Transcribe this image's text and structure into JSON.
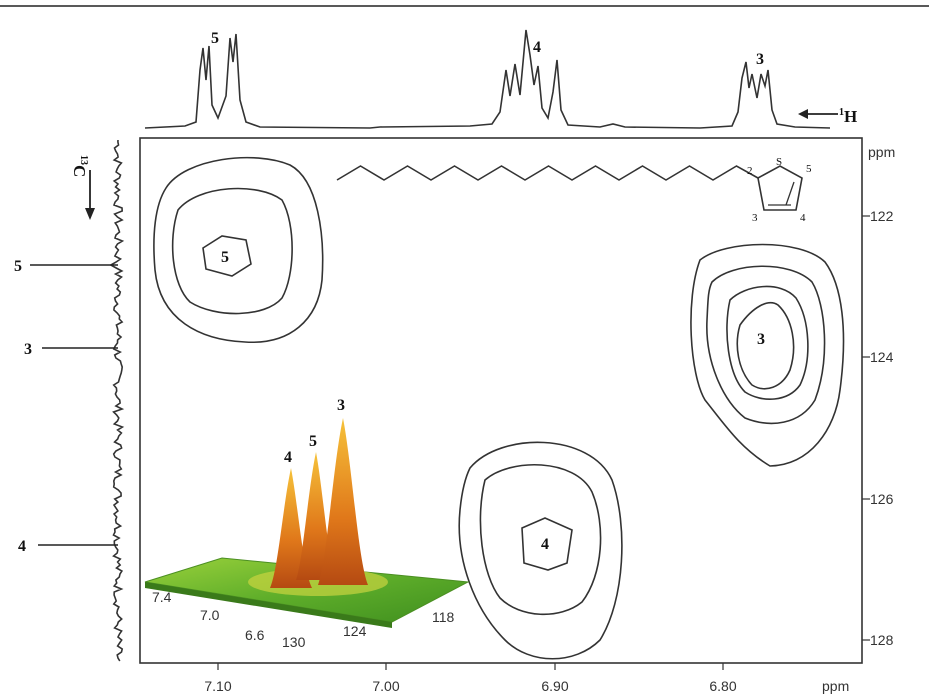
{
  "chart_data": {
    "type": "contour",
    "x_axis": {
      "label": "ppm",
      "ticks": [
        "7.10",
        "7.00",
        "6.90",
        "6.80"
      ],
      "reversed": true,
      "range": [
        7.147,
        6.727
      ]
    },
    "y_axis": {
      "label": "ppm",
      "ticks": [
        "122",
        "124",
        "126",
        "128"
      ],
      "range": [
        120.5,
        128.4
      ],
      "side": "right"
    },
    "h1_spectrum": {
      "nucleus_label": "1H",
      "peak_labels": [
        "5",
        "4",
        "3"
      ]
    },
    "c13_spectrum": {
      "nucleus_label": "13C",
      "peak_labels": [
        "5",
        "3",
        "4"
      ]
    },
    "cross_peaks": [
      {
        "label": "5",
        "h": 7.09,
        "c": 122.7
      },
      {
        "label": "3",
        "h": 6.76,
        "c": 123.8
      },
      {
        "label": "4",
        "h": 6.91,
        "c": 126.6
      }
    ],
    "molecule": {
      "atom_labels": [
        "2",
        "S",
        "5",
        "3",
        "4"
      ]
    },
    "inset_3d": {
      "peak_labels": [
        "4",
        "5",
        "3"
      ],
      "axis1_ticks": [
        "7.4",
        "7.0",
        "6.6"
      ],
      "axis2_ticks": [
        "130",
        "124",
        "118"
      ]
    }
  },
  "colors": {
    "line": "#333333",
    "peak_top": "#f0a020",
    "peak_base": "#c04010",
    "surface": "#7dc02a"
  }
}
